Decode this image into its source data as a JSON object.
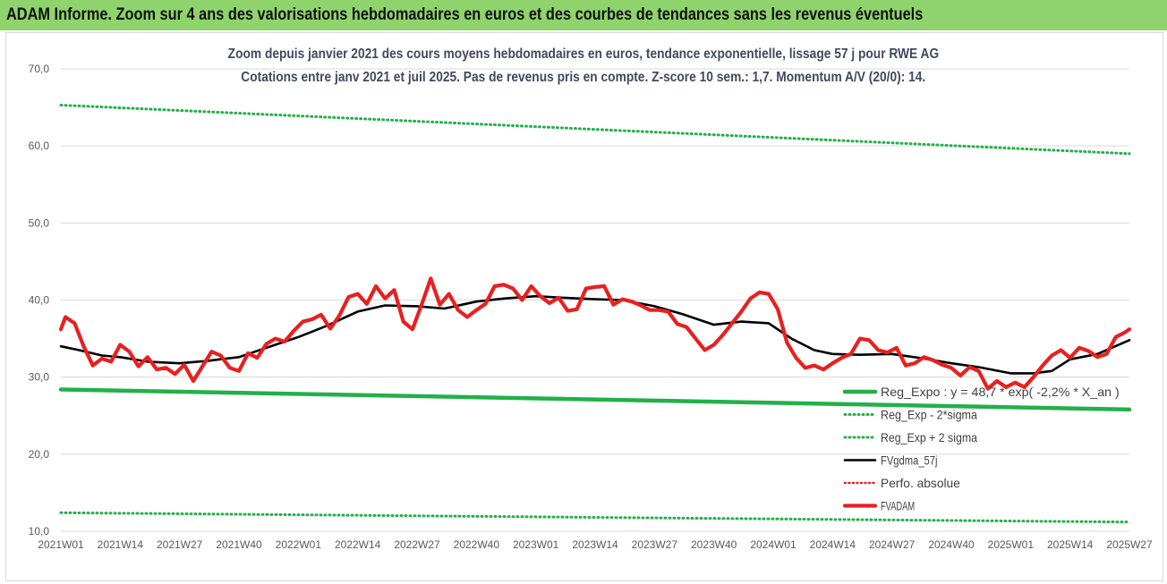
{
  "banner": {
    "title": "ADAM Informe. Zoom sur 4 ans des valorisations hebdomadaires en euros et des courbes de tendances sans les revenus éventuels"
  },
  "colors": {
    "banner_bg": "#8fd36d",
    "reg_expo": "#22b04a",
    "sigma": "#22b04a",
    "fvgdma": "#000000",
    "perfo": "#e02020",
    "fvadam": "#e82020",
    "grid": "#d9d9d9",
    "axis_text": "#595959"
  },
  "chart_data": {
    "type": "line",
    "title": "Zoom depuis janvier 2021 des cours moyens hebdomadaires en euros, tendance exponentielle, lissage 57 j pour RWE AG",
    "subtitle": "Cotations entre janv 2021 et juil 2025. Pas de revenus pris en compte. Z-score 10 sem.: 1,7. Momentum A/V (20/0): 14.",
    "xlabel": "",
    "ylabel": "",
    "ylim": [
      10,
      70
    ],
    "yticks": [
      "10,0",
      "20,0",
      "30,0",
      "40,0",
      "50,0",
      "60,0",
      "70,0"
    ],
    "x_range": [
      "2021W01",
      "2025W27"
    ],
    "x_ticks": [
      "2021W01",
      "2021W14",
      "2021W27",
      "2021W40",
      "2022W01",
      "2022W14",
      "2022W27",
      "2022W40",
      "2023W01",
      "2023W14",
      "2023W27",
      "2023W40",
      "2024W01",
      "2024W14",
      "2024W27",
      "2024W40",
      "2025W01",
      "2025W14",
      "2025W27"
    ],
    "grid": true,
    "legend_position": "bottom-right",
    "series": [
      {
        "name": "Reg_Expo : y = 48,7 * exp( -2,2% *  X_an )",
        "style": "solid-thick",
        "x": [
          "2021W01",
          "2025W27"
        ],
        "values": [
          28.4,
          25.8
        ]
      },
      {
        "name": "Reg_Exp - 2*sigma",
        "style": "dotted",
        "x": [
          "2021W01",
          "2025W27"
        ],
        "values": [
          12.4,
          11.2
        ]
      },
      {
        "name": "Reg_Exp + 2 sigma",
        "style": "dotted",
        "x": [
          "2021W01",
          "2025W27"
        ],
        "values": [
          65.3,
          59.0
        ]
      },
      {
        "name": "FVgdma_57j",
        "style": "solid",
        "x": [
          "2021W01",
          "2021W05",
          "2021W10",
          "2021W14",
          "2021W20",
          "2021W27",
          "2021W33",
          "2021W40",
          "2021W46",
          "2022W01",
          "2022W07",
          "2022W14",
          "2022W20",
          "2022W27",
          "2022W33",
          "2022W40",
          "2022W46",
          "2023W01",
          "2023W07",
          "2023W14",
          "2023W20",
          "2023W27",
          "2023W33",
          "2023W40",
          "2023W46",
          "2023W52",
          "2024W05",
          "2024W10",
          "2024W14",
          "2024W20",
          "2024W27",
          "2024W33",
          "2024W40",
          "2024W46",
          "2025W01",
          "2025W06",
          "2025W10",
          "2025W14",
          "2025W20",
          "2025W27"
        ],
        "values": [
          34.0,
          33.5,
          32.8,
          32.6,
          32.0,
          31.8,
          32.1,
          32.6,
          33.8,
          35.2,
          36.6,
          38.5,
          39.3,
          39.2,
          38.9,
          39.8,
          40.2,
          40.5,
          40.3,
          40.1,
          40.0,
          39.2,
          38.2,
          36.8,
          37.2,
          37.0,
          35.0,
          33.5,
          33.0,
          32.9,
          33.0,
          32.5,
          31.8,
          31.3,
          30.5,
          30.5,
          30.8,
          32.3,
          33.0,
          34.8
        ]
      },
      {
        "name": "Perfo. absolue",
        "style": "dotted",
        "x": [],
        "values": []
      },
      {
        "name": "FVADAM",
        "style": "solid-thick",
        "x": [
          "2021W01",
          "2021W02",
          "2021W04",
          "2021W06",
          "2021W08",
          "2021W10",
          "2021W12",
          "2021W14",
          "2021W16",
          "2021W18",
          "2021W20",
          "2021W22",
          "2021W24",
          "2021W26",
          "2021W28",
          "2021W30",
          "2021W32",
          "2021W34",
          "2021W36",
          "2021W38",
          "2021W40",
          "2021W42",
          "2021W44",
          "2021W46",
          "2021W48",
          "2021W50",
          "2021W52",
          "2022W02",
          "2022W04",
          "2022W06",
          "2022W08",
          "2022W10",
          "2022W12",
          "2022W14",
          "2022W16",
          "2022W18",
          "2022W20",
          "2022W22",
          "2022W24",
          "2022W26",
          "2022W28",
          "2022W30",
          "2022W32",
          "2022W34",
          "2022W36",
          "2022W38",
          "2022W40",
          "2022W42",
          "2022W44",
          "2022W46",
          "2022W48",
          "2022W50",
          "2022W52",
          "2023W02",
          "2023W04",
          "2023W06",
          "2023W08",
          "2023W10",
          "2023W12",
          "2023W14",
          "2023W16",
          "2023W18",
          "2023W20",
          "2023W22",
          "2023W24",
          "2023W26",
          "2023W28",
          "2023W30",
          "2023W32",
          "2023W34",
          "2023W36",
          "2023W38",
          "2023W40",
          "2023W42",
          "2023W44",
          "2023W46",
          "2023W48",
          "2023W50",
          "2023W52",
          "2024W02",
          "2024W04",
          "2024W06",
          "2024W08",
          "2024W10",
          "2024W12",
          "2024W14",
          "2024W16",
          "2024W18",
          "2024W20",
          "2024W22",
          "2024W24",
          "2024W26",
          "2024W28",
          "2024W30",
          "2024W32",
          "2024W34",
          "2024W36",
          "2024W38",
          "2024W40",
          "2024W42",
          "2024W44",
          "2024W46",
          "2024W48",
          "2024W50",
          "2024W52",
          "2025W02",
          "2025W04",
          "2025W06",
          "2025W08",
          "2025W10",
          "2025W12",
          "2025W14",
          "2025W16",
          "2025W18",
          "2025W20",
          "2025W22",
          "2025W24",
          "2025W26",
          "2025W27"
        ],
        "values": [
          36.2,
          37.8,
          37.0,
          34.0,
          31.5,
          32.4,
          32.0,
          34.2,
          33.3,
          31.4,
          32.6,
          31.0,
          31.2,
          30.4,
          31.6,
          29.5,
          31.4,
          33.3,
          32.8,
          31.2,
          30.8,
          33.1,
          32.5,
          34.3,
          35.0,
          34.6,
          36.0,
          37.2,
          37.5,
          38.1,
          36.3,
          38.0,
          40.4,
          40.8,
          39.5,
          41.8,
          40.2,
          41.3,
          37.2,
          36.2,
          39.4,
          42.8,
          39.4,
          40.8,
          38.7,
          37.8,
          38.7,
          39.5,
          41.8,
          42.0,
          41.5,
          40.0,
          41.8,
          40.5,
          39.6,
          40.3,
          38.6,
          38.8,
          41.5,
          41.7,
          41.8,
          39.4,
          40.1,
          39.8,
          39.3,
          38.7,
          38.7,
          38.5,
          36.9,
          36.5,
          35.0,
          33.5,
          34.2,
          35.5,
          37.0,
          38.5,
          40.2,
          41.0,
          40.8,
          38.8,
          34.5,
          32.5,
          31.2,
          31.5,
          31.0,
          31.8,
          32.5,
          33.0,
          35.0,
          34.8,
          33.5,
          33.2,
          33.8,
          31.5,
          31.8,
          32.6,
          32.2,
          31.6,
          31.2,
          30.2,
          31.3,
          30.8,
          28.5,
          29.5,
          28.7,
          29.3,
          28.7,
          30.0,
          31.5,
          32.8,
          33.5,
          32.5,
          33.8,
          33.4,
          32.6,
          33.0,
          35.2,
          35.8,
          36.2
        ]
      }
    ]
  }
}
